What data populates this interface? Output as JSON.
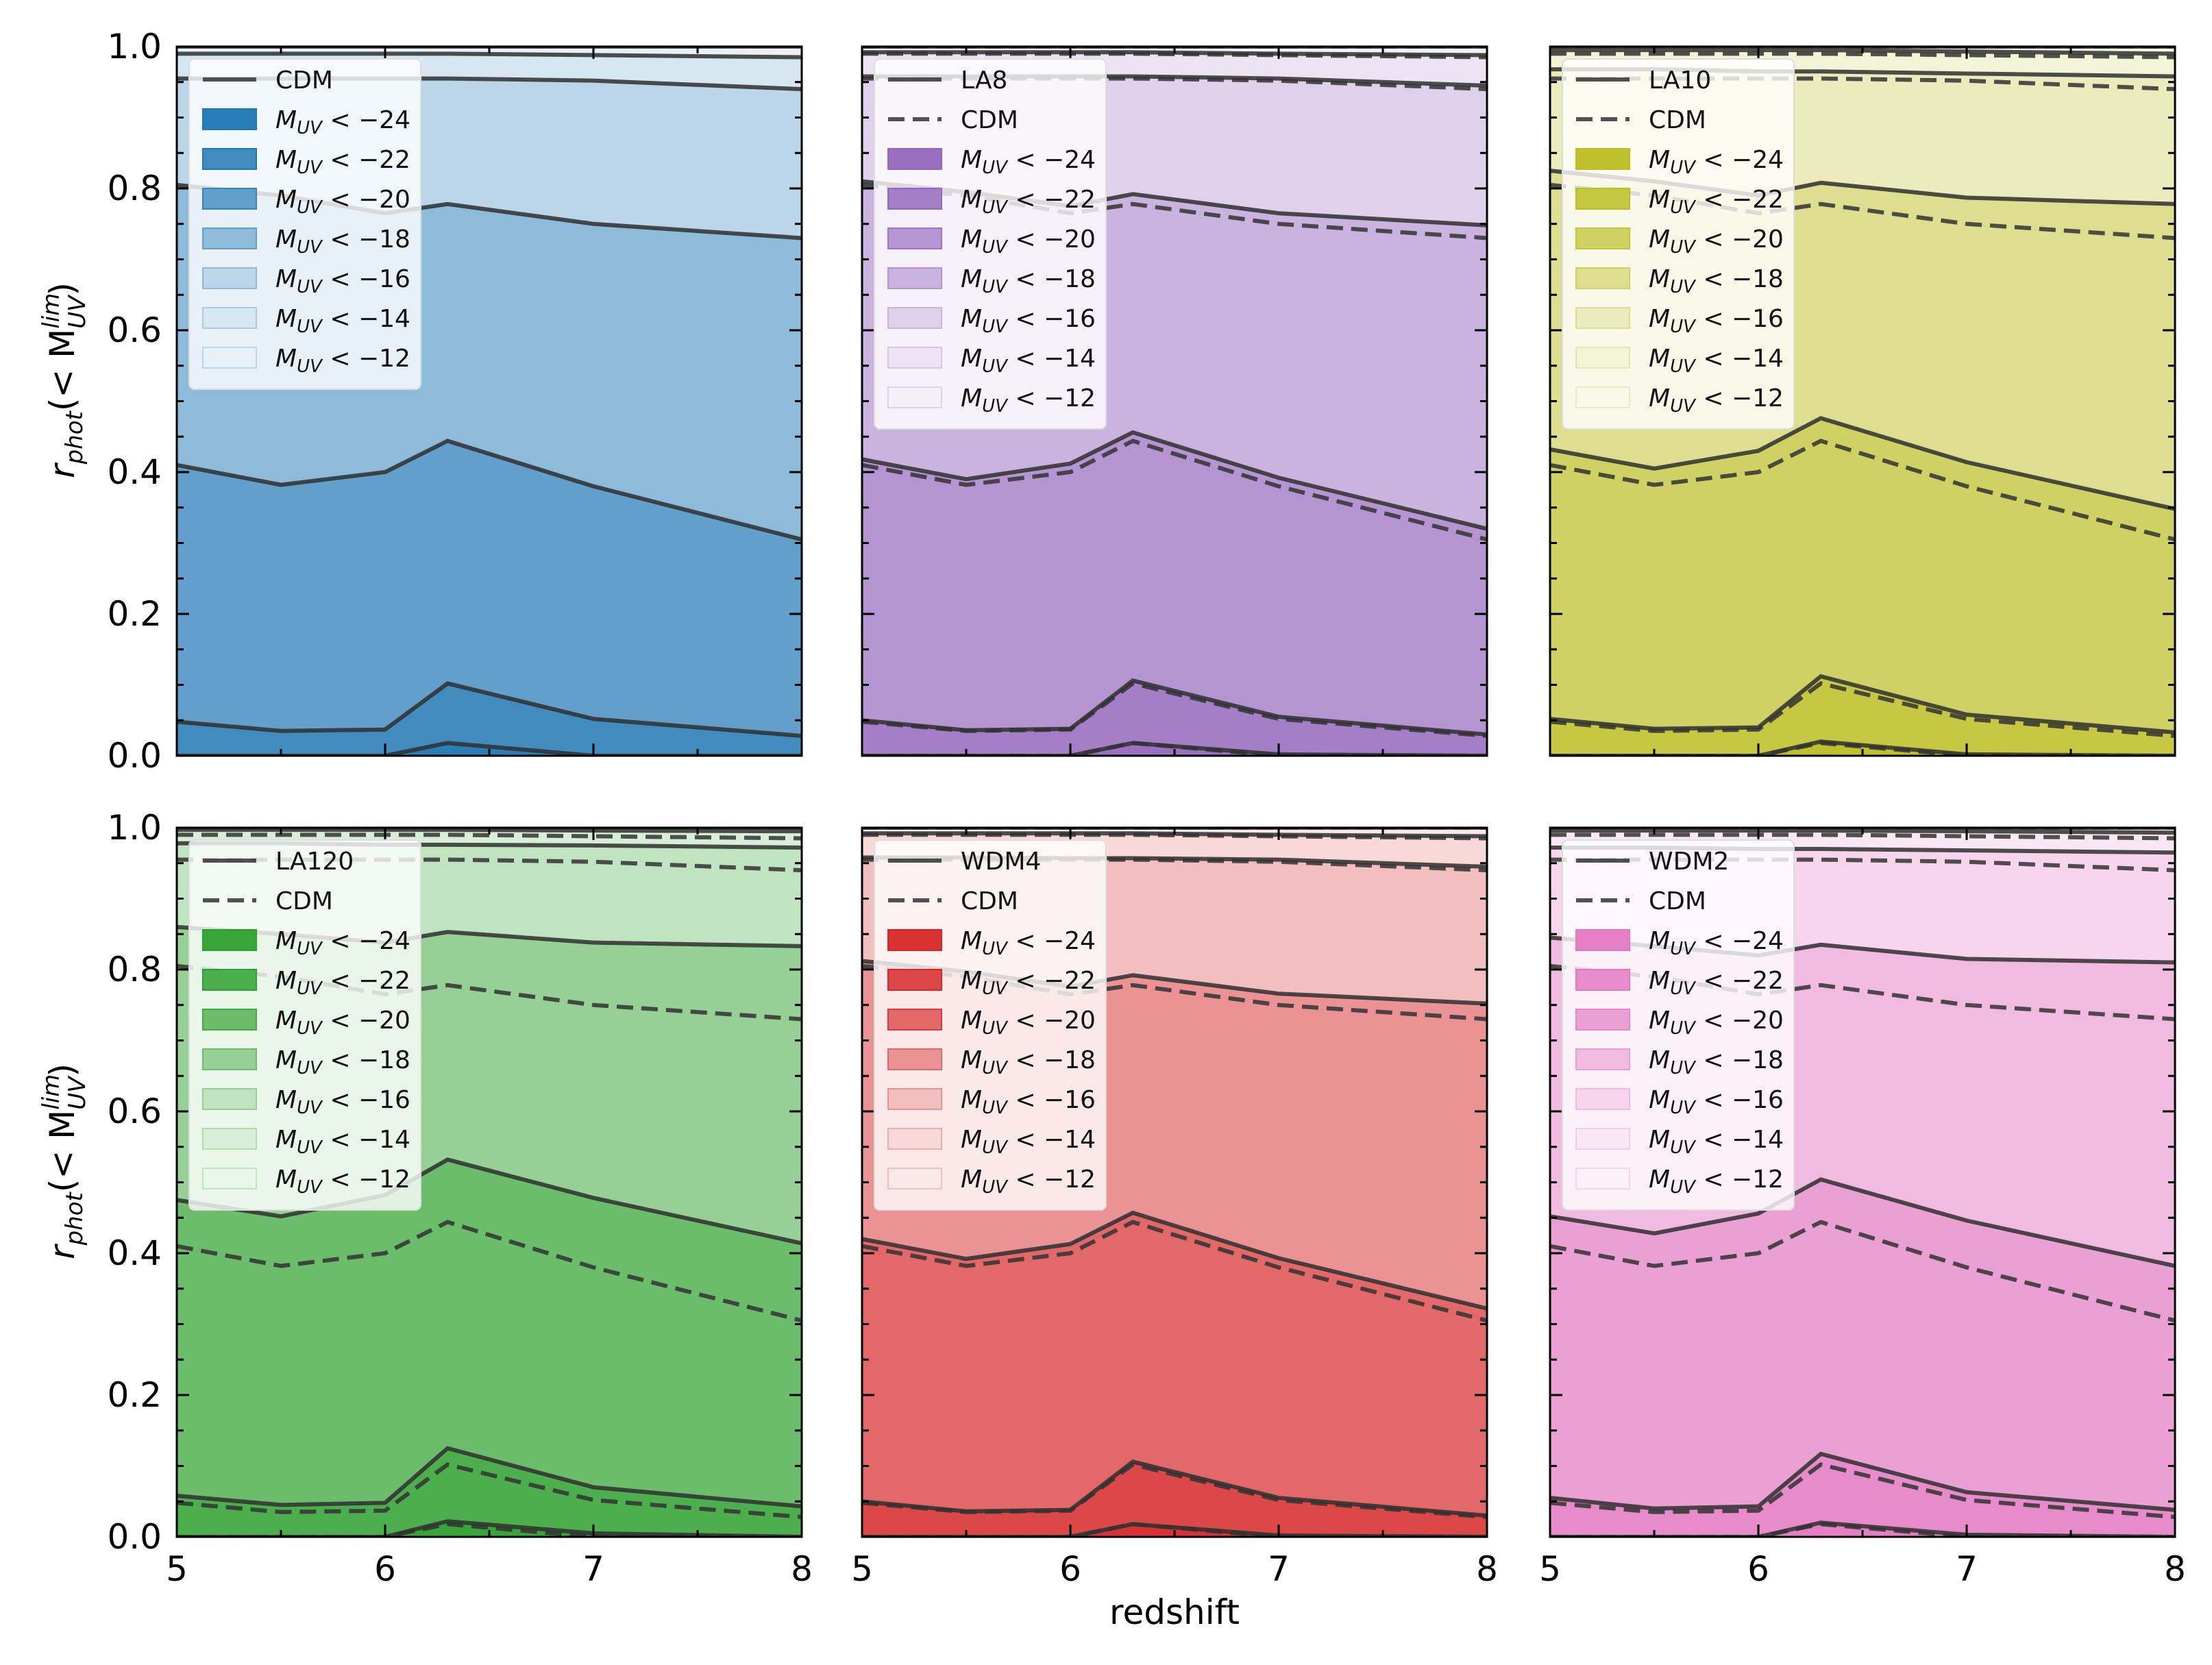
{
  "figure": {
    "xlabel": "redshift",
    "ylabel_main": "r",
    "ylabel_sub": "phot",
    "ylabel_paren": "(< M",
    "ylabel_sup": "lim",
    "ylabel_subsub": "UV",
    "ylabel_close": ")"
  },
  "chart_data": [
    {
      "type": "area",
      "model": "CDM",
      "base_color": "#1f77b4",
      "x": [
        5,
        5.5,
        6,
        6.3,
        7,
        8
      ],
      "xlim": [
        5,
        8
      ],
      "ylim": [
        0,
        1
      ],
      "xticks": [
        "5",
        "6",
        "7",
        "8"
      ],
      "yticks": [
        "0.0",
        "0.2",
        "0.4",
        "0.6",
        "0.8",
        "1.0"
      ],
      "legend": [
        "CDM",
        "M_UV < −24",
        "M_UV < −22",
        "M_UV < −20",
        "M_UV < −18",
        "M_UV < −16",
        "M_UV < −14",
        "M_UV < −12"
      ],
      "series": [
        {
          "name": "M_UV < −24",
          "values": [
            0.0,
            0.0,
            0.0,
            0.018,
            0.0,
            0.0
          ]
        },
        {
          "name": "M_UV < −22",
          "values": [
            0.048,
            0.035,
            0.037,
            0.102,
            0.052,
            0.028
          ]
        },
        {
          "name": "M_UV < −20",
          "values": [
            0.41,
            0.382,
            0.4,
            0.444,
            0.38,
            0.305
          ]
        },
        {
          "name": "M_UV < −18",
          "values": [
            0.805,
            0.79,
            0.765,
            0.778,
            0.75,
            0.73
          ]
        },
        {
          "name": "M_UV < −16",
          "values": [
            0.955,
            0.955,
            0.955,
            0.955,
            0.952,
            0.94
          ]
        },
        {
          "name": "M_UV < −14",
          "values": [
            0.99,
            0.99,
            0.99,
            0.99,
            0.988,
            0.985
          ]
        },
        {
          "name": "M_UV < −12",
          "values": [
            1.0,
            1.0,
            1.0,
            1.0,
            1.0,
            1.0
          ]
        }
      ],
      "cdm_dashed": false
    },
    {
      "type": "area",
      "model": "LA8",
      "base_color": "#9467bd",
      "x": [
        5,
        5.5,
        6,
        6.3,
        7,
        8
      ],
      "xlim": [
        5,
        8
      ],
      "ylim": [
        0,
        1
      ],
      "xticks": [
        "5",
        "6",
        "7",
        "8"
      ],
      "yticks": [],
      "legend": [
        "LA8",
        "CDM",
        "M_UV < −24",
        "M_UV < −22",
        "M_UV < −20",
        "M_UV < −18",
        "M_UV < −16",
        "M_UV < −14",
        "M_UV < −12"
      ],
      "series": [
        {
          "name": "M_UV < −24",
          "values": [
            0.0,
            0.0,
            0.0,
            0.018,
            0.002,
            0.0
          ]
        },
        {
          "name": "M_UV < −22",
          "values": [
            0.05,
            0.036,
            0.038,
            0.106,
            0.055,
            0.03
          ]
        },
        {
          "name": "M_UV < −20",
          "values": [
            0.418,
            0.39,
            0.412,
            0.456,
            0.392,
            0.32
          ]
        },
        {
          "name": "M_UV < −18",
          "values": [
            0.81,
            0.795,
            0.775,
            0.792,
            0.765,
            0.748
          ]
        },
        {
          "name": "M_UV < −16",
          "values": [
            0.958,
            0.958,
            0.958,
            0.958,
            0.955,
            0.945
          ]
        },
        {
          "name": "M_UV < −14",
          "values": [
            0.992,
            0.992,
            0.992,
            0.992,
            0.99,
            0.988
          ]
        },
        {
          "name": "M_UV < −12",
          "values": [
            1.0,
            1.0,
            1.0,
            1.0,
            1.0,
            1.0
          ]
        }
      ],
      "cdm_dashed": true
    },
    {
      "type": "area",
      "model": "LA10",
      "base_color": "#bcbd22",
      "x": [
        5,
        5.5,
        6,
        6.3,
        7,
        8
      ],
      "xlim": [
        5,
        8
      ],
      "ylim": [
        0,
        1
      ],
      "xticks": [
        "5",
        "6",
        "7",
        "8"
      ],
      "yticks": [],
      "legend": [
        "LA10",
        "CDM",
        "M_UV < −24",
        "M_UV < −22",
        "M_UV < −20",
        "M_UV < −18",
        "M_UV < −16",
        "M_UV < −14",
        "M_UV < −12"
      ],
      "series": [
        {
          "name": "M_UV < −24",
          "values": [
            0.0,
            0.0,
            0.0,
            0.02,
            0.002,
            0.0
          ]
        },
        {
          "name": "M_UV < −22",
          "values": [
            0.052,
            0.038,
            0.04,
            0.112,
            0.058,
            0.033
          ]
        },
        {
          "name": "M_UV < −20",
          "values": [
            0.432,
            0.405,
            0.43,
            0.476,
            0.414,
            0.348
          ]
        },
        {
          "name": "M_UV < −18",
          "values": [
            0.825,
            0.81,
            0.79,
            0.808,
            0.787,
            0.778
          ]
        },
        {
          "name": "M_UV < −16",
          "values": [
            0.968,
            0.968,
            0.965,
            0.965,
            0.962,
            0.958
          ]
        },
        {
          "name": "M_UV < −14",
          "values": [
            0.995,
            0.995,
            0.995,
            0.995,
            0.993,
            0.99
          ]
        },
        {
          "name": "M_UV < −12",
          "values": [
            1.0,
            1.0,
            1.0,
            1.0,
            1.0,
            1.0
          ]
        }
      ],
      "cdm_dashed": true
    },
    {
      "type": "area",
      "model": "LA120",
      "base_color": "#2ca02c",
      "x": [
        5,
        5.5,
        6,
        6.3,
        7,
        8
      ],
      "xlim": [
        5,
        8
      ],
      "ylim": [
        0,
        1
      ],
      "xticks": [
        "5",
        "6",
        "7",
        "8"
      ],
      "yticks": [
        "0.0",
        "0.2",
        "0.4",
        "0.6",
        "0.8",
        "1.0"
      ],
      "legend": [
        "LA120",
        "CDM",
        "M_UV < −24",
        "M_UV < −22",
        "M_UV < −20",
        "M_UV < −18",
        "M_UV < −16",
        "M_UV < −14",
        "M_UV < −12"
      ],
      "series": [
        {
          "name": "M_UV < −24",
          "values": [
            0.0,
            0.0,
            0.0,
            0.022,
            0.005,
            0.0
          ]
        },
        {
          "name": "M_UV < −22",
          "values": [
            0.058,
            0.045,
            0.048,
            0.125,
            0.07,
            0.043
          ]
        },
        {
          "name": "M_UV < −20",
          "values": [
            0.475,
            0.452,
            0.482,
            0.532,
            0.478,
            0.414
          ]
        },
        {
          "name": "M_UV < −18",
          "values": [
            0.86,
            0.85,
            0.838,
            0.853,
            0.838,
            0.833
          ]
        },
        {
          "name": "M_UV < −16",
          "values": [
            0.978,
            0.978,
            0.976,
            0.976,
            0.975,
            0.972
          ]
        },
        {
          "name": "M_UV < −14",
          "values": [
            0.997,
            0.997,
            0.997,
            0.997,
            0.996,
            0.995
          ]
        },
        {
          "name": "M_UV < −12",
          "values": [
            1.0,
            1.0,
            1.0,
            1.0,
            1.0,
            1.0
          ]
        }
      ],
      "cdm_dashed": true
    },
    {
      "type": "area",
      "model": "WDM4",
      "base_color": "#d62728",
      "x": [
        5,
        5.5,
        6,
        6.3,
        7,
        8
      ],
      "xlim": [
        5,
        8
      ],
      "ylim": [
        0,
        1
      ],
      "xticks": [
        "5",
        "6",
        "7",
        "8"
      ],
      "yticks": [],
      "legend": [
        "WDM4",
        "CDM",
        "M_UV < −24",
        "M_UV < −22",
        "M_UV < −20",
        "M_UV < −18",
        "M_UV < −16",
        "M_UV < −14",
        "M_UV < −12"
      ],
      "series": [
        {
          "name": "M_UV < −24",
          "values": [
            0.0,
            0.0,
            0.0,
            0.018,
            0.002,
            0.0
          ]
        },
        {
          "name": "M_UV < −22",
          "values": [
            0.05,
            0.036,
            0.038,
            0.106,
            0.055,
            0.03
          ]
        },
        {
          "name": "M_UV < −20",
          "values": [
            0.42,
            0.392,
            0.413,
            0.457,
            0.393,
            0.322
          ]
        },
        {
          "name": "M_UV < −18",
          "values": [
            0.812,
            0.797,
            0.776,
            0.792,
            0.766,
            0.752
          ]
        },
        {
          "name": "M_UV < −16",
          "values": [
            0.958,
            0.958,
            0.957,
            0.957,
            0.955,
            0.945
          ]
        },
        {
          "name": "M_UV < −14",
          "values": [
            0.992,
            0.992,
            0.992,
            0.992,
            0.99,
            0.988
          ]
        },
        {
          "name": "M_UV < −12",
          "values": [
            1.0,
            1.0,
            1.0,
            1.0,
            1.0,
            1.0
          ]
        }
      ],
      "cdm_dashed": true
    },
    {
      "type": "area",
      "model": "WDM2",
      "base_color": "#e377c2",
      "x": [
        5,
        5.5,
        6,
        6.3,
        7,
        8
      ],
      "xlim": [
        5,
        8
      ],
      "ylim": [
        0,
        1
      ],
      "xticks": [
        "5",
        "6",
        "7",
        "8"
      ],
      "yticks": [],
      "legend": [
        "WDM2",
        "CDM",
        "M_UV < −24",
        "M_UV < −22",
        "M_UV < −20",
        "M_UV < −18",
        "M_UV < −16",
        "M_UV < −14",
        "M_UV < −12"
      ],
      "series": [
        {
          "name": "M_UV < −24",
          "values": [
            0.0,
            0.0,
            0.0,
            0.02,
            0.003,
            0.0
          ]
        },
        {
          "name": "M_UV < −22",
          "values": [
            0.055,
            0.04,
            0.043,
            0.117,
            0.063,
            0.038
          ]
        },
        {
          "name": "M_UV < −20",
          "values": [
            0.452,
            0.428,
            0.456,
            0.504,
            0.446,
            0.382
          ]
        },
        {
          "name": "M_UV < −18",
          "values": [
            0.845,
            0.833,
            0.82,
            0.835,
            0.815,
            0.81
          ]
        },
        {
          "name": "M_UV < −16",
          "values": [
            0.972,
            0.972,
            0.97,
            0.97,
            0.968,
            0.965
          ]
        },
        {
          "name": "M_UV < −14",
          "values": [
            0.996,
            0.996,
            0.996,
            0.996,
            0.995,
            0.993
          ]
        },
        {
          "name": "M_UV < −12",
          "values": [
            1.0,
            1.0,
            1.0,
            1.0,
            1.0,
            1.0
          ]
        }
      ],
      "cdm_dashed": true
    }
  ]
}
